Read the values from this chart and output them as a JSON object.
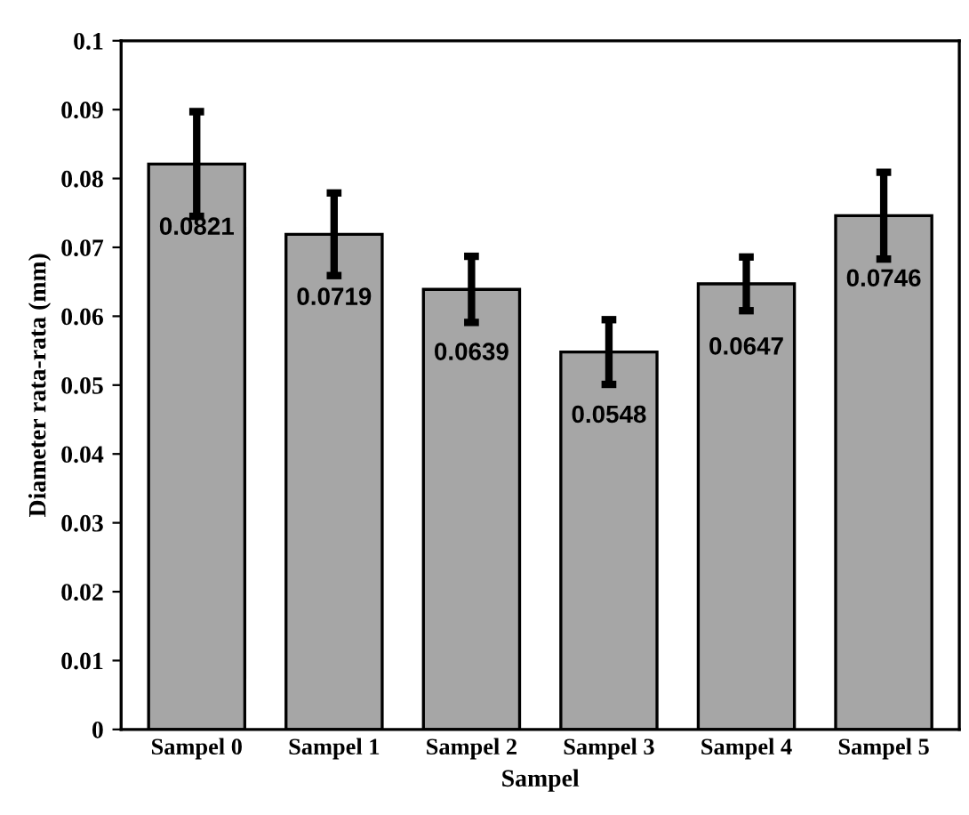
{
  "chart_data": {
    "type": "bar",
    "xlabel": "Sampel",
    "ylabel": "Diameter rata-rata (mm)",
    "categories": [
      "Sampel 0",
      "Sampel 1",
      "Sampel 2",
      "Sampel 3",
      "Sampel 4",
      "Sampel 5"
    ],
    "values": [
      0.0821,
      0.0719,
      0.0639,
      0.0548,
      0.0647,
      0.0746
    ],
    "errors": [
      0.0076,
      0.006,
      0.0048,
      0.0047,
      0.0039,
      0.0063
    ],
    "color": "#a6a6a6",
    "data_labels": true,
    "ylim": [
      0,
      0.1
    ],
    "yticks": [
      {
        "value": 0,
        "label": "0"
      },
      0.01,
      0.02,
      0.03,
      0.04,
      0.05,
      0.06,
      0.07,
      0.08,
      0.09,
      0.1
    ],
    "grid": false
  }
}
